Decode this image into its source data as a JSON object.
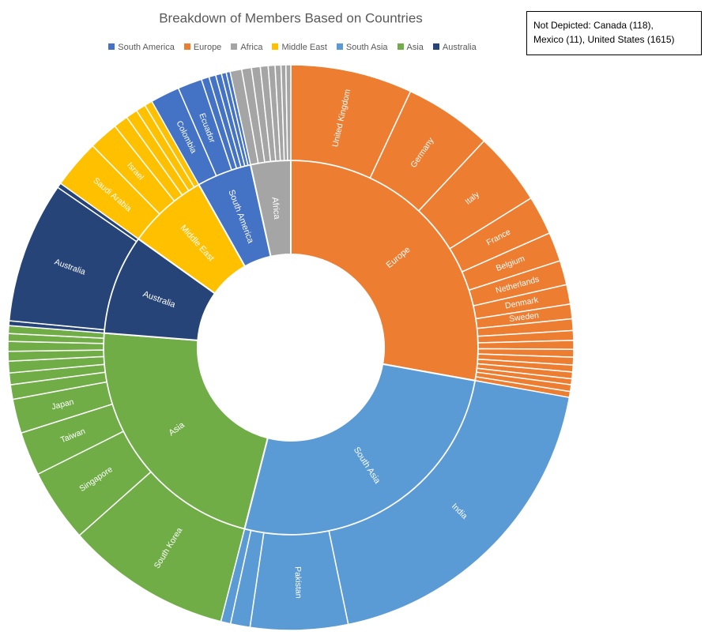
{
  "chart_data": {
    "type": "sunburst",
    "title": "Breakdown of Members Based on Countries",
    "annotation": [
      "Not Depicted: Canada (118),",
      "Mexico (11), United States (1615)"
    ],
    "series": [
      {
        "name": "Europe",
        "color": "#ed7d31",
        "value": 500,
        "children": [
          {
            "name": "United Kingdom",
            "value": 125
          },
          {
            "name": "Germany",
            "value": 90
          },
          {
            "name": "Italy",
            "value": 75
          },
          {
            "name": "France",
            "value": 40
          },
          {
            "name": "Belgium",
            "value": 30
          },
          {
            "name": "Netherlands",
            "value": 25
          },
          {
            "name": "Denmark",
            "value": 20
          },
          {
            "name": "Sweden",
            "value": 15
          },
          {
            "name": null,
            "value": 12
          },
          {
            "name": null,
            "value": 10
          },
          {
            "name": null,
            "value": 9
          },
          {
            "name": null,
            "value": 8
          },
          {
            "name": null,
            "value": 8
          },
          {
            "name": null,
            "value": 7
          },
          {
            "name": null,
            "value": 7
          },
          {
            "name": null,
            "value": 6
          },
          {
            "name": null,
            "value": 7
          },
          {
            "name": null,
            "value": 6
          }
        ]
      },
      {
        "name": "South Asia",
        "color": "#5b9bd5",
        "value": 470,
        "children": [
          {
            "name": "India",
            "value": 340
          },
          {
            "name": "Pakistan",
            "value": 100
          },
          {
            "name": null,
            "value": 20
          },
          {
            "name": null,
            "value": 10
          }
        ]
      },
      {
        "name": "Asia",
        "color": "#70ad47",
        "value": 400,
        "children": [
          {
            "name": "South Korea",
            "value": 170
          },
          {
            "name": "Singapore",
            "value": 75
          },
          {
            "name": "Taiwan",
            "value": 45
          },
          {
            "name": "Japan",
            "value": 35
          },
          {
            "name": null,
            "value": 15
          },
          {
            "name": null,
            "value": 12
          },
          {
            "name": null,
            "value": 12
          },
          {
            "name": null,
            "value": 10
          },
          {
            "name": null,
            "value": 10
          },
          {
            "name": null,
            "value": 8
          },
          {
            "name": null,
            "value": 8
          }
        ]
      },
      {
        "name": "Australia",
        "color": "#264478",
        "value": 155,
        "children": [
          {
            "name": null,
            "value": 5
          },
          {
            "name": "Australia",
            "value": 145
          },
          {
            "name": null,
            "value": 5
          }
        ]
      },
      {
        "name": "Middle East",
        "color": "#ffc000",
        "value": 125,
        "children": [
          {
            "name": "Saudi Arabia",
            "value": 50
          },
          {
            "name": "Israel",
            "value": 30
          },
          {
            "name": null,
            "value": 15
          },
          {
            "name": null,
            "value": 12
          },
          {
            "name": null,
            "value": 10
          },
          {
            "name": null,
            "value": 8
          }
        ]
      },
      {
        "name": "South America",
        "color": "#4472c4",
        "value": 85,
        "children": [
          {
            "name": "Colombia",
            "value": 30
          },
          {
            "name": "Ecuador",
            "value": 25
          },
          {
            "name": null,
            "value": 8
          },
          {
            "name": null,
            "value": 7
          },
          {
            "name": null,
            "value": 6
          },
          {
            "name": null,
            "value": 5
          },
          {
            "name": null,
            "value": 4
          }
        ]
      },
      {
        "name": "Africa",
        "color": "#a5a5a5",
        "value": 62,
        "children": [
          {
            "name": null,
            "value": 12
          },
          {
            "name": null,
            "value": 10
          },
          {
            "name": null,
            "value": 9
          },
          {
            "name": null,
            "value": 8
          },
          {
            "name": null,
            "value": 7
          },
          {
            "name": null,
            "value": 6
          },
          {
            "name": null,
            "value": 5
          },
          {
            "name": null,
            "value": 5
          }
        ]
      }
    ],
    "legend_order": [
      5,
      0,
      6,
      4,
      1,
      2,
      3
    ]
  }
}
